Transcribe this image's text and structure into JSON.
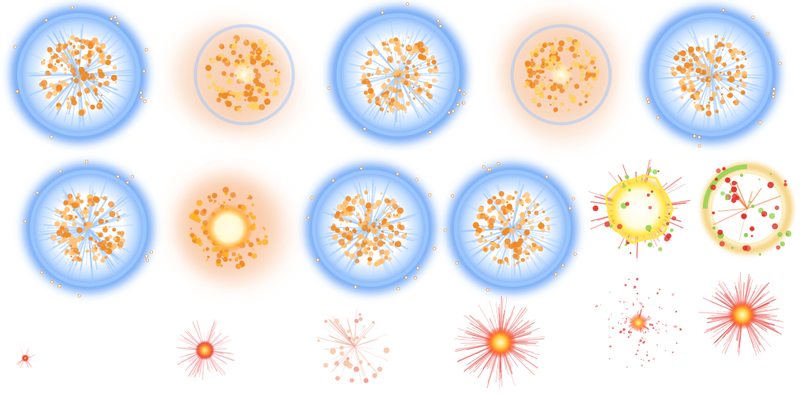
{
  "sprite_sheet": {
    "background": "#ffffff",
    "colors": {
      "ring_blue": "#2f7df0",
      "ring_light": "#9cc8ff",
      "ember_orange": "#f08a24",
      "ember_light": "#ffc070",
      "smoke_peach": "#f7c7a3",
      "core_white": "#fffde8",
      "flash_yellow": "#ffe640",
      "flash_red": "#e2322a",
      "ray_pink": "#f59a9a",
      "ring_green": "#8fd24a"
    },
    "frames": [
      {
        "id": "f01",
        "type": "blue-ring-burst",
        "icon": "blue-energy-ring-icon"
      },
      {
        "id": "f02",
        "type": "orange-ember-cloud",
        "icon": "ember-cloud-icon"
      },
      {
        "id": "f03",
        "type": "blue-ring-burst",
        "icon": "blue-energy-ring-icon"
      },
      {
        "id": "f04",
        "type": "orange-ember-cloud",
        "icon": "ember-cloud-icon"
      },
      {
        "id": "f05",
        "type": "blue-ring-burst",
        "icon": "blue-energy-ring-icon"
      },
      {
        "id": "f06",
        "type": "blue-ring-burst",
        "icon": "blue-energy-ring-icon"
      },
      {
        "id": "f07",
        "type": "fire-core-explosion",
        "icon": "fire-explosion-icon"
      },
      {
        "id": "f08",
        "type": "blue-ring-burst",
        "icon": "blue-energy-ring-icon"
      },
      {
        "id": "f09",
        "type": "blue-ring-burst",
        "icon": "blue-energy-ring-icon"
      },
      {
        "id": "f10",
        "type": "yellow-flash",
        "icon": "yellow-flash-icon"
      },
      {
        "id": "f11",
        "type": "shockwave-ring",
        "icon": "shockwave-ring-icon"
      },
      {
        "id": "f12",
        "type": "tiny-spark",
        "icon": "spark-dot-icon"
      },
      {
        "id": "f13",
        "type": "radial-spark",
        "icon": "radial-spark-icon"
      },
      {
        "id": "f14",
        "type": "thin-line-burst",
        "icon": "line-burst-icon"
      },
      {
        "id": "f15",
        "type": "red-starburst",
        "icon": "red-starburst-icon"
      },
      {
        "id": "f16",
        "type": "dotted-spark-burst",
        "icon": "dotted-spark-icon"
      },
      {
        "id": "f17",
        "type": "red-starburst",
        "icon": "red-starburst-icon"
      }
    ]
  }
}
